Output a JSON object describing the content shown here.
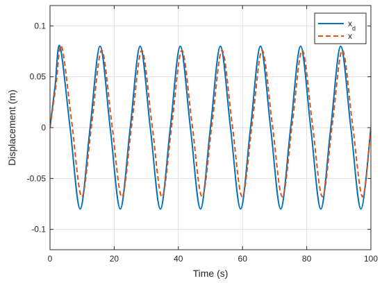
{
  "chart_data": {
    "type": "line",
    "title": "",
    "xlabel": "Time (s)",
    "ylabel": "Displacement (m)",
    "xlim": [
      0,
      100
    ],
    "ylim": [
      -0.12,
      0.12
    ],
    "xticks": [
      0,
      20,
      40,
      60,
      80,
      100
    ],
    "xtick_labels": [
      "0",
      "20",
      "40",
      "60",
      "80",
      "100"
    ],
    "yticks": [
      -0.1,
      -0.05,
      0,
      0.05,
      0.1
    ],
    "ytick_labels": [
      "-0.1",
      "-0.05",
      "0",
      "0.05",
      "0.1"
    ],
    "grid": true,
    "legend_position": "top-right",
    "series": [
      {
        "name": "x_d",
        "legend_main": "x",
        "legend_sub": "d",
        "color": "#0072BD",
        "style": "solid",
        "amplitude": 0.08,
        "period": 12.5,
        "peaks": [
          {
            "t": 3.1,
            "y": 0.08
          },
          {
            "t": 15.6,
            "y": 0.08
          },
          {
            "t": 28.1,
            "y": 0.08
          },
          {
            "t": 40.6,
            "y": 0.08
          },
          {
            "t": 53.1,
            "y": 0.08
          },
          {
            "t": 65.6,
            "y": 0.08
          },
          {
            "t": 78.1,
            "y": 0.08
          },
          {
            "t": 90.6,
            "y": 0.08
          }
        ],
        "troughs": [
          {
            "t": 9.4,
            "y": -0.08
          },
          {
            "t": 21.9,
            "y": -0.08
          },
          {
            "t": 34.4,
            "y": -0.08
          },
          {
            "t": 46.9,
            "y": -0.08
          },
          {
            "t": 59.4,
            "y": -0.08
          },
          {
            "t": 71.9,
            "y": -0.08
          },
          {
            "t": 84.4,
            "y": -0.08
          },
          {
            "t": 96.9,
            "y": -0.08
          }
        ]
      },
      {
        "name": "x",
        "legend_main": "x",
        "legend_sub": "",
        "color": "#D95319",
        "style": "dashed",
        "peaks": [
          {
            "t": 3.6,
            "y": 0.08
          },
          {
            "t": 16.1,
            "y": 0.076
          },
          {
            "t": 28.6,
            "y": 0.076
          },
          {
            "t": 41.1,
            "y": 0.076
          },
          {
            "t": 53.6,
            "y": 0.076
          },
          {
            "t": 66.1,
            "y": 0.076
          },
          {
            "t": 78.6,
            "y": 0.076
          },
          {
            "t": 91.1,
            "y": 0.076
          }
        ],
        "troughs": [
          {
            "t": 9.9,
            "y": -0.068
          },
          {
            "t": 22.4,
            "y": -0.068
          },
          {
            "t": 34.9,
            "y": -0.068
          },
          {
            "t": 47.4,
            "y": -0.068
          },
          {
            "t": 59.9,
            "y": -0.068
          },
          {
            "t": 72.4,
            "y": -0.068
          },
          {
            "t": 84.9,
            "y": -0.068
          },
          {
            "t": 97.4,
            "y": -0.068
          }
        ]
      }
    ]
  }
}
